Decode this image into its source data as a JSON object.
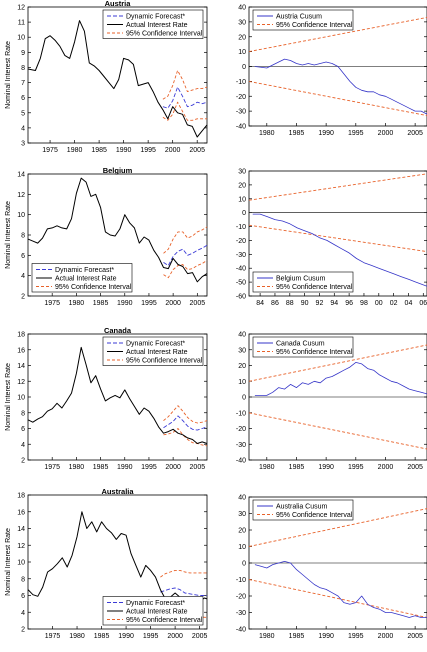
{
  "chart_data": [
    {
      "type": "line",
      "title": "Austria",
      "ylabel": "Nominal Interest Rate",
      "xlim": [
        1970.5,
        2007
      ],
      "ylim": [
        3,
        12
      ],
      "xticks": [
        1975,
        1980,
        1985,
        1990,
        1995,
        2000,
        2005
      ],
      "yticks": [
        3,
        4,
        5,
        6,
        7,
        8,
        9,
        10,
        11,
        12
      ],
      "legend": [
        "Dynamic Forecast*",
        "Actual Interest Rate",
        "95% Confidence Interval"
      ],
      "legend_position": "top-right",
      "actual": {
        "x": [
          1970.5,
          1972,
          1973,
          1974,
          1975,
          1976,
          1977,
          1978,
          1979,
          1980,
          1981,
          1982,
          1983,
          1984,
          1985,
          1986,
          1987,
          1988,
          1989,
          1990,
          1991,
          1992,
          1993,
          1994,
          1995,
          1996,
          1997,
          1998,
          1999,
          2000,
          2001,
          2002,
          2003,
          2004,
          2005,
          2006,
          2007
        ],
        "y": [
          7.9,
          7.8,
          8.6,
          9.9,
          10.1,
          9.8,
          9.4,
          8.8,
          8.6,
          9.7,
          11.1,
          10.4,
          8.3,
          8.1,
          7.8,
          7.4,
          7.0,
          6.6,
          7.2,
          8.6,
          8.5,
          8.2,
          6.8,
          6.9,
          7.0,
          6.4,
          5.7,
          5.2,
          4.6,
          5.4,
          5.0,
          4.9,
          4.2,
          4.1,
          3.4,
          3.8,
          4.2
        ]
      },
      "forecast": {
        "x": [
          1998,
          1999,
          2000,
          2001,
          2002,
          2003,
          2004,
          2005,
          2006,
          2007
        ],
        "y": [
          5.4,
          5.3,
          5.8,
          6.7,
          6.1,
          5.4,
          5.5,
          5.7,
          5.6,
          5.7
        ]
      },
      "ci_upper": {
        "x": [
          1998,
          1999,
          2000,
          2001,
          2002,
          2003,
          2004,
          2005,
          2006,
          2007
        ],
        "y": [
          5.9,
          6.1,
          6.8,
          7.8,
          7.2,
          6.4,
          6.5,
          6.6,
          6.6,
          6.7
        ]
      },
      "ci_lower": {
        "x": [
          1998,
          1999,
          2000,
          2001,
          2002,
          2003,
          2004,
          2005,
          2006,
          2007
        ],
        "y": [
          4.7,
          4.5,
          4.9,
          5.7,
          5.1,
          4.5,
          4.5,
          4.6,
          4.6,
          4.6
        ]
      }
    },
    {
      "type": "line",
      "title": "",
      "xlim": [
        1977,
        2007
      ],
      "ylim": [
        -40,
        40
      ],
      "xticks": [
        1980,
        1985,
        1990,
        1995,
        2000,
        2005
      ],
      "yticks": [
        -40,
        -30,
        -20,
        -10,
        0,
        10,
        20,
        30,
        40
      ],
      "legend": [
        "Austria Cusum",
        "95% Confidence Interval"
      ],
      "legend_position": "top-left",
      "cusum": {
        "x": [
          1978,
          1980,
          1981,
          1982,
          1983,
          1984,
          1985,
          1986,
          1987,
          1988,
          1989,
          1990,
          1991,
          1992,
          1993,
          1994,
          1995,
          1996,
          1997,
          1998,
          1999,
          2000,
          2001,
          2002,
          2003,
          2004,
          2005,
          2006,
          2007
        ],
        "y": [
          0,
          -1,
          1,
          3,
          5,
          4,
          2,
          1,
          2,
          1,
          2,
          3,
          2,
          0,
          -5,
          -10,
          -14,
          -16,
          -17,
          -17,
          -19,
          -20,
          -22,
          -24,
          -26,
          -28,
          -30,
          -30,
          -32
        ]
      },
      "ci_upper": {
        "x": [
          1977,
          2007
        ],
        "y": [
          10,
          33
        ]
      },
      "ci_lower": {
        "x": [
          1977,
          2007
        ],
        "y": [
          -10,
          -33
        ]
      }
    },
    {
      "type": "line",
      "title": "Belgium",
      "ylabel": "Nominal Interest Rate",
      "xlim": [
        1970,
        2007
      ],
      "ylim": [
        2,
        14
      ],
      "xticks": [
        1975,
        1980,
        1985,
        1990,
        1995,
        2000,
        2005
      ],
      "yticks": [
        2,
        4,
        6,
        8,
        10,
        12,
        14
      ],
      "legend": [
        "Dynamic Forecast*",
        "Actual Interest Rate",
        "95% Confidence Interval"
      ],
      "legend_position": "bottom-left",
      "actual": {
        "x": [
          1970,
          1971,
          1972,
          1973,
          1974,
          1975,
          1976,
          1977,
          1978,
          1979,
          1980,
          1981,
          1982,
          1983,
          1984,
          1985,
          1986,
          1987,
          1988,
          1989,
          1990,
          1991,
          1992,
          1993,
          1994,
          1995,
          1996,
          1997,
          1998,
          1999,
          2000,
          2001,
          2002,
          2003,
          2004,
          2005,
          2006,
          2007
        ],
        "y": [
          7.6,
          7.4,
          7.2,
          7.7,
          8.6,
          8.7,
          8.9,
          8.7,
          8.6,
          9.6,
          12.1,
          13.6,
          13.2,
          11.8,
          12.0,
          10.7,
          8.3,
          8.0,
          7.9,
          8.6,
          10.0,
          9.2,
          8.7,
          7.2,
          7.8,
          7.5,
          6.5,
          5.8,
          4.8,
          4.7,
          5.7,
          5.1,
          4.9,
          4.2,
          4.3,
          3.4,
          3.9,
          4.2
        ]
      },
      "forecast": {
        "x": [
          1998,
          1999,
          2000,
          2001,
          2002,
          2003,
          2004,
          2005,
          2006,
          2007
        ],
        "y": [
          5.3,
          5.0,
          5.9,
          6.4,
          6.6,
          6.0,
          6.2,
          6.5,
          6.7,
          7.0
        ]
      },
      "ci_upper": {
        "x": [
          1998,
          1999,
          2000,
          2001,
          2002,
          2003,
          2004,
          2005,
          2006,
          2007
        ],
        "y": [
          6.2,
          6.6,
          7.6,
          8.3,
          8.3,
          7.7,
          7.9,
          8.3,
          8.5,
          8.8
        ]
      },
      "ci_lower": {
        "x": [
          1998,
          1999,
          2000,
          2001,
          2002,
          2003,
          2004,
          2005,
          2006,
          2007
        ],
        "y": [
          4.1,
          3.8,
          4.6,
          5.0,
          5.1,
          4.6,
          4.7,
          5.0,
          5.2,
          5.5
        ]
      }
    },
    {
      "type": "line",
      "title": "",
      "xlim": [
        1982.5,
        2006.5
      ],
      "ylim": [
        -60,
        30
      ],
      "xticklabels": [
        "84",
        "86",
        "88",
        "90",
        "92",
        "94",
        "96",
        "98",
        "00",
        "02",
        "04",
        "06"
      ],
      "xticks": [
        1984,
        1986,
        1988,
        1990,
        1992,
        1994,
        1996,
        1998,
        2000,
        2002,
        2004,
        2006
      ],
      "yticks": [
        -60,
        -50,
        -40,
        -30,
        -20,
        -10,
        0,
        10,
        20,
        30
      ],
      "legend": [
        "Belgium Cusum",
        "95% Confidence Interval"
      ],
      "legend_position": "bottom-left",
      "cusum": {
        "x": [
          1983,
          1984,
          1985,
          1986,
          1987,
          1988,
          1989,
          1990,
          1991,
          1992,
          1993,
          1994,
          1995,
          1996,
          1997,
          1998,
          1999,
          2000,
          2001,
          2002,
          2003,
          2004,
          2005,
          2006,
          2006.5
        ],
        "y": [
          -1,
          -1,
          -3,
          -5,
          -6,
          -8,
          -11,
          -13,
          -15,
          -18,
          -20,
          -23,
          -26,
          -29,
          -33,
          -36,
          -38,
          -40,
          -42,
          -44,
          -46,
          -48,
          -50,
          -52,
          -53
        ]
      },
      "ci_upper": {
        "x": [
          1982.5,
          2006.5
        ],
        "y": [
          9,
          28
        ]
      },
      "ci_lower": {
        "x": [
          1982.5,
          2006.5
        ],
        "y": [
          -9,
          -28
        ]
      }
    },
    {
      "type": "line",
      "title": "Canada",
      "ylabel": "Nominal Interest Rate",
      "xlim": [
        1970,
        2007
      ],
      "ylim": [
        2,
        18
      ],
      "xticks": [
        1975,
        1980,
        1985,
        1990,
        1995,
        2000,
        2005
      ],
      "yticks": [
        2,
        4,
        6,
        8,
        10,
        12,
        14,
        16,
        18
      ],
      "legend": [
        "Dynamic Forecast*",
        "Actual Interest Rate",
        "95% Confidence Interval"
      ],
      "legend_position": "top-right",
      "actual": {
        "x": [
          1970,
          1971,
          1972,
          1973,
          1974,
          1975,
          1976,
          1977,
          1978,
          1979,
          1980,
          1981,
          1982,
          1983,
          1984,
          1985,
          1986,
          1987,
          1988,
          1989,
          1990,
          1991,
          1992,
          1993,
          1994,
          1995,
          1996,
          1997,
          1998,
          1999,
          2000,
          2001,
          2002,
          2003,
          2004,
          2005,
          2006,
          2007
        ],
        "y": [
          7.1,
          6.8,
          7.2,
          7.5,
          8.2,
          8.5,
          9.2,
          8.6,
          9.5,
          10.5,
          13.0,
          16.3,
          14.1,
          11.8,
          12.7,
          11.0,
          9.5,
          9.9,
          10.2,
          9.9,
          10.9,
          9.8,
          8.8,
          7.8,
          8.6,
          8.2,
          7.3,
          6.2,
          5.4,
          5.6,
          5.9,
          5.4,
          5.2,
          4.8,
          4.6,
          4.1,
          4.3,
          4.1
        ]
      },
      "forecast": {
        "x": [
          1998,
          1999,
          2000,
          2001,
          2002,
          2003,
          2004,
          2005,
          2006,
          2007
        ],
        "y": [
          6.1,
          6.5,
          6.9,
          7.6,
          7.0,
          6.3,
          5.9,
          5.8,
          6.0,
          6.2
        ]
      },
      "ci_upper": {
        "x": [
          1998,
          1999,
          2000,
          2001,
          2002,
          2003,
          2004,
          2005,
          2006,
          2007
        ],
        "y": [
          7.0,
          7.5,
          8.2,
          8.9,
          8.2,
          7.4,
          6.9,
          6.7,
          6.8,
          7.0
        ]
      },
      "ci_lower": {
        "x": [
          1998,
          1999,
          2000,
          2001,
          2002,
          2003,
          2004,
          2005,
          2006,
          2007
        ],
        "y": [
          5.2,
          5.3,
          5.5,
          6.0,
          5.2,
          4.6,
          4.2,
          4.1,
          3.9,
          3.8
        ]
      }
    },
    {
      "type": "line",
      "title": "",
      "xlim": [
        1977,
        2007
      ],
      "ylim": [
        -40,
        40
      ],
      "xticks": [
        1980,
        1985,
        1990,
        1995,
        2000,
        2005
      ],
      "yticks": [
        -40,
        -30,
        -20,
        -10,
        0,
        10,
        20,
        30,
        40
      ],
      "legend": [
        "Canada Cusum",
        "95% Confidence Interval"
      ],
      "legend_position": "top-left",
      "cusum": {
        "x": [
          1978,
          1980,
          1981,
          1982,
          1983,
          1984,
          1985,
          1986,
          1987,
          1988,
          1989,
          1990,
          1991,
          1992,
          1993,
          1994,
          1995,
          1996,
          1997,
          1998,
          1999,
          2000,
          2001,
          2002,
          2003,
          2004,
          2005,
          2006,
          2007
        ],
        "y": [
          1,
          1,
          3,
          6,
          5,
          8,
          6,
          9,
          8,
          10,
          9,
          12,
          13,
          15,
          17,
          19,
          22,
          21,
          18,
          17,
          14,
          12,
          10,
          9,
          7,
          5,
          4,
          3,
          2
        ]
      },
      "ci_upper": {
        "x": [
          1977,
          2007
        ],
        "y": [
          10,
          33
        ]
      },
      "ci_lower": {
        "x": [
          1977,
          2007
        ],
        "y": [
          -10,
          -33
        ]
      }
    },
    {
      "type": "line",
      "title": "Australia",
      "ylabel": "Nominal Interest Rate",
      "xlim": [
        1970,
        2006.5
      ],
      "ylim": [
        2,
        18
      ],
      "xticks": [
        1975,
        1980,
        1985,
        1990,
        1995,
        2000,
        2005
      ],
      "yticks": [
        2,
        4,
        6,
        8,
        10,
        12,
        14,
        16,
        18
      ],
      "legend": [
        "Dynamic Forecast*",
        "Actual Interest Rate",
        "95% Confidence Interval"
      ],
      "legend_position": "bottom-right",
      "actual": {
        "x": [
          1970,
          1971,
          1972,
          1973,
          1974,
          1975,
          1976,
          1977,
          1978,
          1979,
          1980,
          1981,
          1982,
          1983,
          1984,
          1985,
          1986,
          1987,
          1988,
          1989,
          1990,
          1991,
          1992,
          1993,
          1994,
          1995,
          1996,
          1997,
          1998,
          1999,
          2000,
          2001,
          2002,
          2003,
          2004,
          2005,
          2006,
          2006.5
        ],
        "y": [
          6.7,
          6.1,
          5.9,
          7.0,
          8.8,
          9.2,
          9.8,
          10.5,
          9.4,
          10.8,
          13.0,
          16.0,
          14.0,
          14.8,
          13.6,
          14.8,
          14.0,
          13.5,
          12.7,
          13.4,
          13.2,
          11.0,
          9.6,
          8.2,
          9.6,
          9.0,
          8.2,
          6.7,
          5.6,
          5.8,
          6.3,
          5.8,
          5.7,
          5.4,
          5.6,
          5.3,
          5.7,
          5.6
        ]
      },
      "forecast": {
        "x": [
          1997,
          1998,
          1999,
          2000,
          2001,
          2002,
          2003,
          2004,
          2005,
          2006,
          2006.5
        ],
        "y": [
          6.4,
          6.6,
          6.8,
          6.9,
          6.7,
          6.3,
          6.2,
          6.1,
          6.0,
          6.0,
          6.0
        ]
      },
      "ci_upper": {
        "x": [
          1997,
          1998,
          1999,
          2000,
          2001,
          2002,
          2003,
          2004,
          2005,
          2006,
          2006.5
        ],
        "y": [
          8.2,
          8.6,
          8.8,
          9.0,
          9.0,
          8.8,
          8.7,
          8.7,
          8.7,
          8.7,
          8.7
        ]
      },
      "ci_lower": {
        "x": [
          1997,
          1998,
          1999,
          2000,
          2001,
          2002,
          2003,
          2004,
          2005,
          2006,
          2006.5
        ],
        "y": [
          4.8,
          4.5,
          4.2,
          3.9,
          3.7,
          3.6,
          3.6,
          3.5,
          3.5,
          3.4,
          3.4
        ]
      }
    },
    {
      "type": "line",
      "title": "",
      "xlim": [
        1977,
        2007
      ],
      "ylim": [
        -40,
        40
      ],
      "xticks": [
        1980,
        1985,
        1990,
        1995,
        2000,
        2005
      ],
      "yticks": [
        -40,
        -30,
        -20,
        -10,
        0,
        10,
        20,
        30,
        40
      ],
      "legend": [
        "Australia Cusum",
        "95% Confidence Interval"
      ],
      "legend_position": "top-left",
      "cusum": {
        "x": [
          1978,
          1979,
          1980,
          1981,
          1982,
          1983,
          1984,
          1985,
          1986,
          1987,
          1988,
          1989,
          1990,
          1991,
          1992,
          1993,
          1994,
          1995,
          1996,
          1997,
          1998,
          1999,
          2000,
          2001,
          2002,
          2003,
          2004,
          2005,
          2006,
          2007
        ],
        "y": [
          -1,
          -2,
          -3,
          -1,
          0,
          1,
          0,
          -4,
          -7,
          -10,
          -13,
          -15,
          -16,
          -18,
          -20,
          -24,
          -25,
          -24,
          -20,
          -25,
          -27,
          -28,
          -30,
          -30,
          -31,
          -32,
          -33,
          -32,
          -33,
          -33
        ]
      },
      "ci_upper": {
        "x": [
          1977,
          2007
        ],
        "y": [
          10,
          33
        ]
      },
      "ci_lower": {
        "x": [
          1977,
          2007
        ],
        "y": [
          -10,
          -33
        ]
      }
    }
  ]
}
